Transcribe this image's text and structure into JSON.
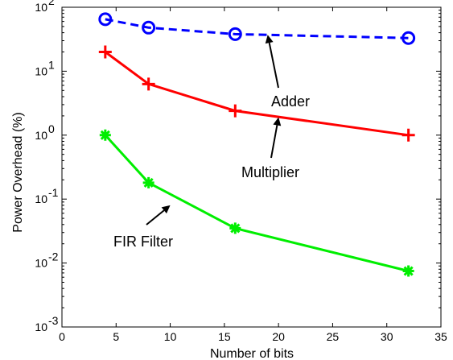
{
  "chart_data": {
    "type": "line",
    "title": "",
    "xlabel": "Number of bits",
    "ylabel": "Power Overhead (%)",
    "xlim": [
      0,
      35
    ],
    "ylim": [
      0.001,
      100
    ],
    "yscale": "log",
    "grid": false,
    "legend": "none",
    "x_ticks": [
      "0",
      "5",
      "10",
      "15",
      "20",
      "25",
      "30",
      "35"
    ],
    "y_ticks": [
      {
        "base": "10",
        "exp": "-3"
      },
      {
        "base": "10",
        "exp": "-2"
      },
      {
        "base": "10",
        "exp": "-1"
      },
      {
        "base": "10",
        "exp": "0"
      },
      {
        "base": "10",
        "exp": "1"
      },
      {
        "base": "10",
        "exp": "2"
      }
    ],
    "series": [
      {
        "name": "Adder",
        "x": [
          4,
          8,
          16,
          32
        ],
        "values": [
          65,
          48,
          38,
          33
        ],
        "color": "#0000ff",
        "line_style": "dashed",
        "marker": "circle"
      },
      {
        "name": "Multiplier",
        "x": [
          4,
          8,
          16,
          32
        ],
        "values": [
          20,
          6.3,
          2.4,
          1.0
        ],
        "color": "#ff0000",
        "line_style": "solid",
        "marker": "plus"
      },
      {
        "name": "FIR Filter",
        "x": [
          4,
          8,
          16,
          32
        ],
        "values": [
          1.0,
          0.18,
          0.035,
          0.0075
        ],
        "color": "#00ee00",
        "line_style": "solid",
        "marker": "star"
      }
    ],
    "annotations": [
      {
        "text": "Adder",
        "target_x": 19,
        "target_y": 37
      },
      {
        "text": "Multiplier",
        "target_x": 20,
        "target_y": 1.9
      },
      {
        "text": "FIR Filter",
        "target_x": 10,
        "target_y": 0.08
      }
    ]
  }
}
